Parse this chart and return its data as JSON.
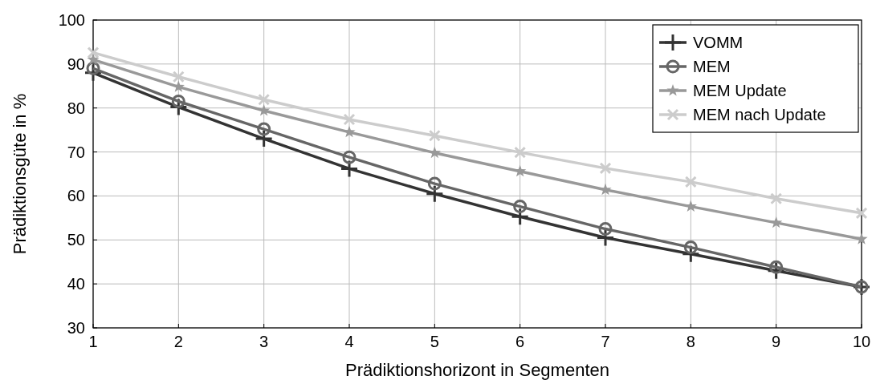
{
  "chart_data": {
    "type": "line",
    "xlabel": "Prädiktionshorizont in Segmenten",
    "ylabel": "Prädiktionsgüte in %",
    "x": [
      1,
      2,
      3,
      4,
      5,
      6,
      7,
      8,
      9,
      10
    ],
    "xlim": [
      1,
      10
    ],
    "xticks": [
      1,
      2,
      3,
      4,
      5,
      6,
      7,
      8,
      9,
      10
    ],
    "ylim": [
      30,
      100
    ],
    "yticks": [
      30,
      40,
      50,
      60,
      70,
      80,
      90,
      100
    ],
    "grid": true,
    "legend": "top right",
    "line_style": "solid",
    "series": [
      {
        "name": "VOMM",
        "color": "#333333",
        "marker": "cross",
        "values": [
          88,
          80.2,
          73,
          66.2,
          60.5,
          55.3,
          50.5,
          46.8,
          43,
          39.3
        ]
      },
      {
        "name": "MEM",
        "color": "#666666",
        "marker": "circle",
        "values": [
          89,
          81.5,
          75.2,
          68.8,
          62.8,
          57.6,
          52.5,
          48.3,
          43.8,
          39.3
        ]
      },
      {
        "name": "MEM Update",
        "color": "#999999",
        "marker": "star",
        "values": [
          91,
          84.8,
          79.4,
          74.5,
          69.8,
          65.6,
          61.4,
          57.6,
          53.9,
          50.2
        ]
      },
      {
        "name": "MEM nach Update",
        "color": "#cccccc",
        "marker": "x",
        "values": [
          92.6,
          87.1,
          81.9,
          77.4,
          73.7,
          69.9,
          66.3,
          63.2,
          59.4,
          56.1
        ]
      }
    ]
  }
}
